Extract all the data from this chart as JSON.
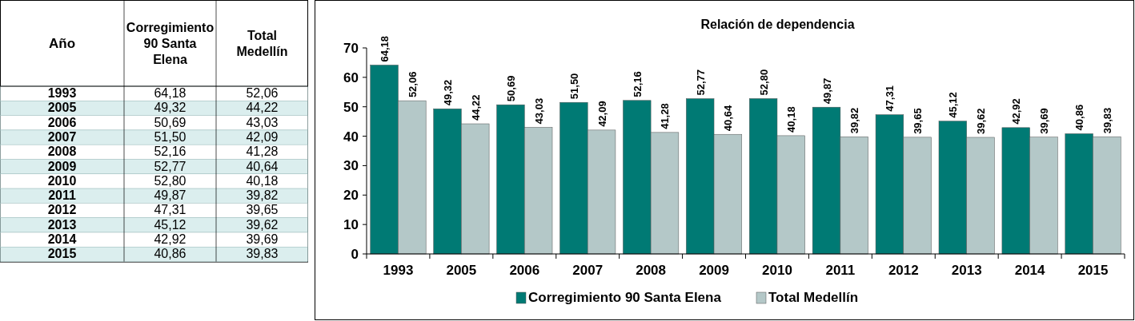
{
  "chart_data": {
    "type": "bar",
    "title": "Relación de dependencia",
    "categories": [
      "1993",
      "2005",
      "2006",
      "2007",
      "2008",
      "2009",
      "2010",
      "2011",
      "2012",
      "2013",
      "2014",
      "2015"
    ],
    "series": [
      {
        "name": "Corregimiento 90 Santa Elena",
        "color": "#007a74",
        "values": [
          64.18,
          49.32,
          50.69,
          51.5,
          52.16,
          52.77,
          52.8,
          49.87,
          47.31,
          45.12,
          42.92,
          40.86
        ],
        "value_labels": [
          "64,18",
          "49,32",
          "50,69",
          "51,50",
          "52,16",
          "52,77",
          "52,80",
          "49,87",
          "47,31",
          "45,12",
          "42,92",
          "40,86"
        ]
      },
      {
        "name": "Total Medellín",
        "color": "#b4c8c8",
        "values": [
          52.06,
          44.22,
          43.03,
          42.09,
          41.28,
          40.64,
          40.18,
          39.82,
          39.65,
          39.62,
          39.69,
          39.83
        ],
        "value_labels": [
          "52,06",
          "44,22",
          "43,03",
          "42,09",
          "41,28",
          "40,64",
          "40,18",
          "39,82",
          "39,65",
          "39,62",
          "39,69",
          "39,83"
        ]
      }
    ],
    "annotations": [
      "Año"
    ],
    "ylim": [
      0,
      70
    ],
    "yticks": [
      0,
      10,
      20,
      30,
      40,
      50,
      60,
      70
    ],
    "grid": false,
    "legend": "bottom"
  }
}
